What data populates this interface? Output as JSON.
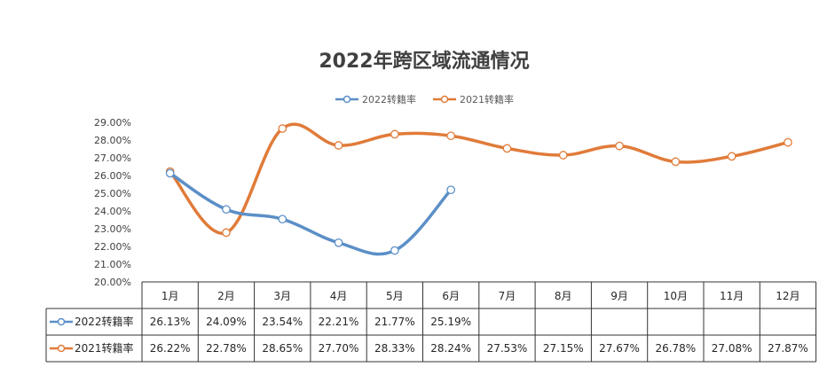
{
  "chart_data": {
    "type": "line",
    "title": "2022年跨区域流通情况",
    "categories": [
      "1月",
      "2月",
      "3月",
      "4月",
      "5月",
      "6月",
      "7月",
      "8月",
      "9月",
      "10月",
      "11月",
      "12月"
    ],
    "series": [
      {
        "name": "2022转籍率",
        "color": "#5b8fc7",
        "values": [
          26.13,
          24.09,
          23.54,
          22.21,
          21.77,
          25.19,
          null,
          null,
          null,
          null,
          null,
          null
        ],
        "labels": [
          "26.13%",
          "24.09%",
          "23.54%",
          "22.21%",
          "21.77%",
          "25.19%",
          "",
          "",
          "",
          "",
          "",
          ""
        ]
      },
      {
        "name": "2021转籍率",
        "color": "#e07b39",
        "values": [
          26.22,
          22.78,
          28.65,
          27.7,
          28.33,
          28.24,
          27.53,
          27.15,
          27.67,
          26.78,
          27.08,
          27.87
        ],
        "labels": [
          "26.22%",
          "22.78%",
          "28.65%",
          "27.70%",
          "28.33%",
          "28.24%",
          "27.53%",
          "27.15%",
          "27.67%",
          "26.78%",
          "27.08%",
          "27.87%"
        ]
      }
    ],
    "ylim": [
      20,
      29
    ],
    "yticks": [
      "20.00%",
      "21.00%",
      "22.00%",
      "23.00%",
      "24.00%",
      "25.00%",
      "26.00%",
      "27.00%",
      "28.00%",
      "29.00%"
    ],
    "legend_position": "top-center",
    "grid": false,
    "data_table": true
  }
}
